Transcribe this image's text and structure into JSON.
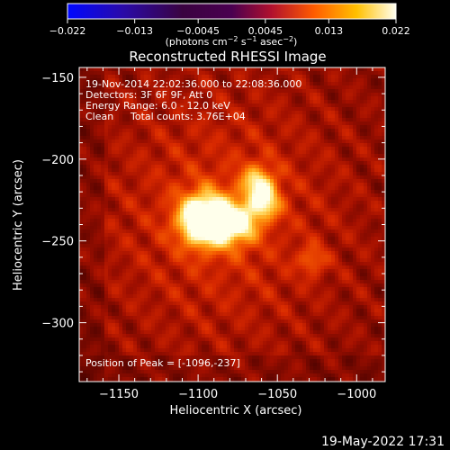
{
  "colorbar": {
    "ticks": [
      "-0.022",
      "-0.013",
      "-0.0045",
      "0.0045",
      "0.013",
      "0.022"
    ],
    "tick_values": [
      -0.022,
      -0.013,
      -0.0045,
      0.0045,
      0.013,
      0.022
    ],
    "range": [
      -0.022,
      0.022
    ],
    "unit_parts": {
      "a": "(photons cm",
      "a_sup": "−2",
      "b": " s",
      "b_sup": "−1",
      "c": " asec",
      "c_sup": "−2",
      "d": ")"
    }
  },
  "chart_data": {
    "type": "heatmap",
    "title": "Reconstructed RHESSI Image",
    "xlabel": "Heliocentric X (arcsec)",
    "ylabel": "Heliocentric Y (arcsec)",
    "xlim": [
      -1175,
      -982
    ],
    "ylim": [
      -336,
      -144
    ],
    "x_ticks": [
      -1150,
      -1100,
      -1050,
      -1000
    ],
    "y_ticks": [
      -150,
      -200,
      -250,
      -300
    ],
    "x_tick_labels": [
      "−1150",
      "−1100",
      "−1050",
      "−1000"
    ],
    "y_tick_labels": [
      "−150",
      "−200",
      "−250",
      "−300"
    ],
    "colormap": "red-temperature",
    "sources": [
      {
        "x": -1096,
        "y": -237,
        "peak": 0.022,
        "note": "main bright source"
      },
      {
        "x": -1075,
        "y": -240,
        "peak": 0.012
      },
      {
        "x": -1062,
        "y": -215,
        "peak": 0.011
      },
      {
        "x": -1058,
        "y": -228,
        "peak": 0.01
      },
      {
        "x": -1028,
        "y": -262,
        "peak": 0.006
      }
    ],
    "annotations": {
      "time": "19-Nov-2014 22:02:36.000 to 22:08:36.000",
      "detectors": "Detectors: 3F 6F 9F, Att 0",
      "energy": "Energy Range: 6.0 - 12.0 keV",
      "clean_label": "Clean",
      "counts": "Total counts: 3.76E+04",
      "peak": "Position of Peak = [-1096,-237]"
    }
  },
  "timestamp": "19-May-2022 17:31"
}
